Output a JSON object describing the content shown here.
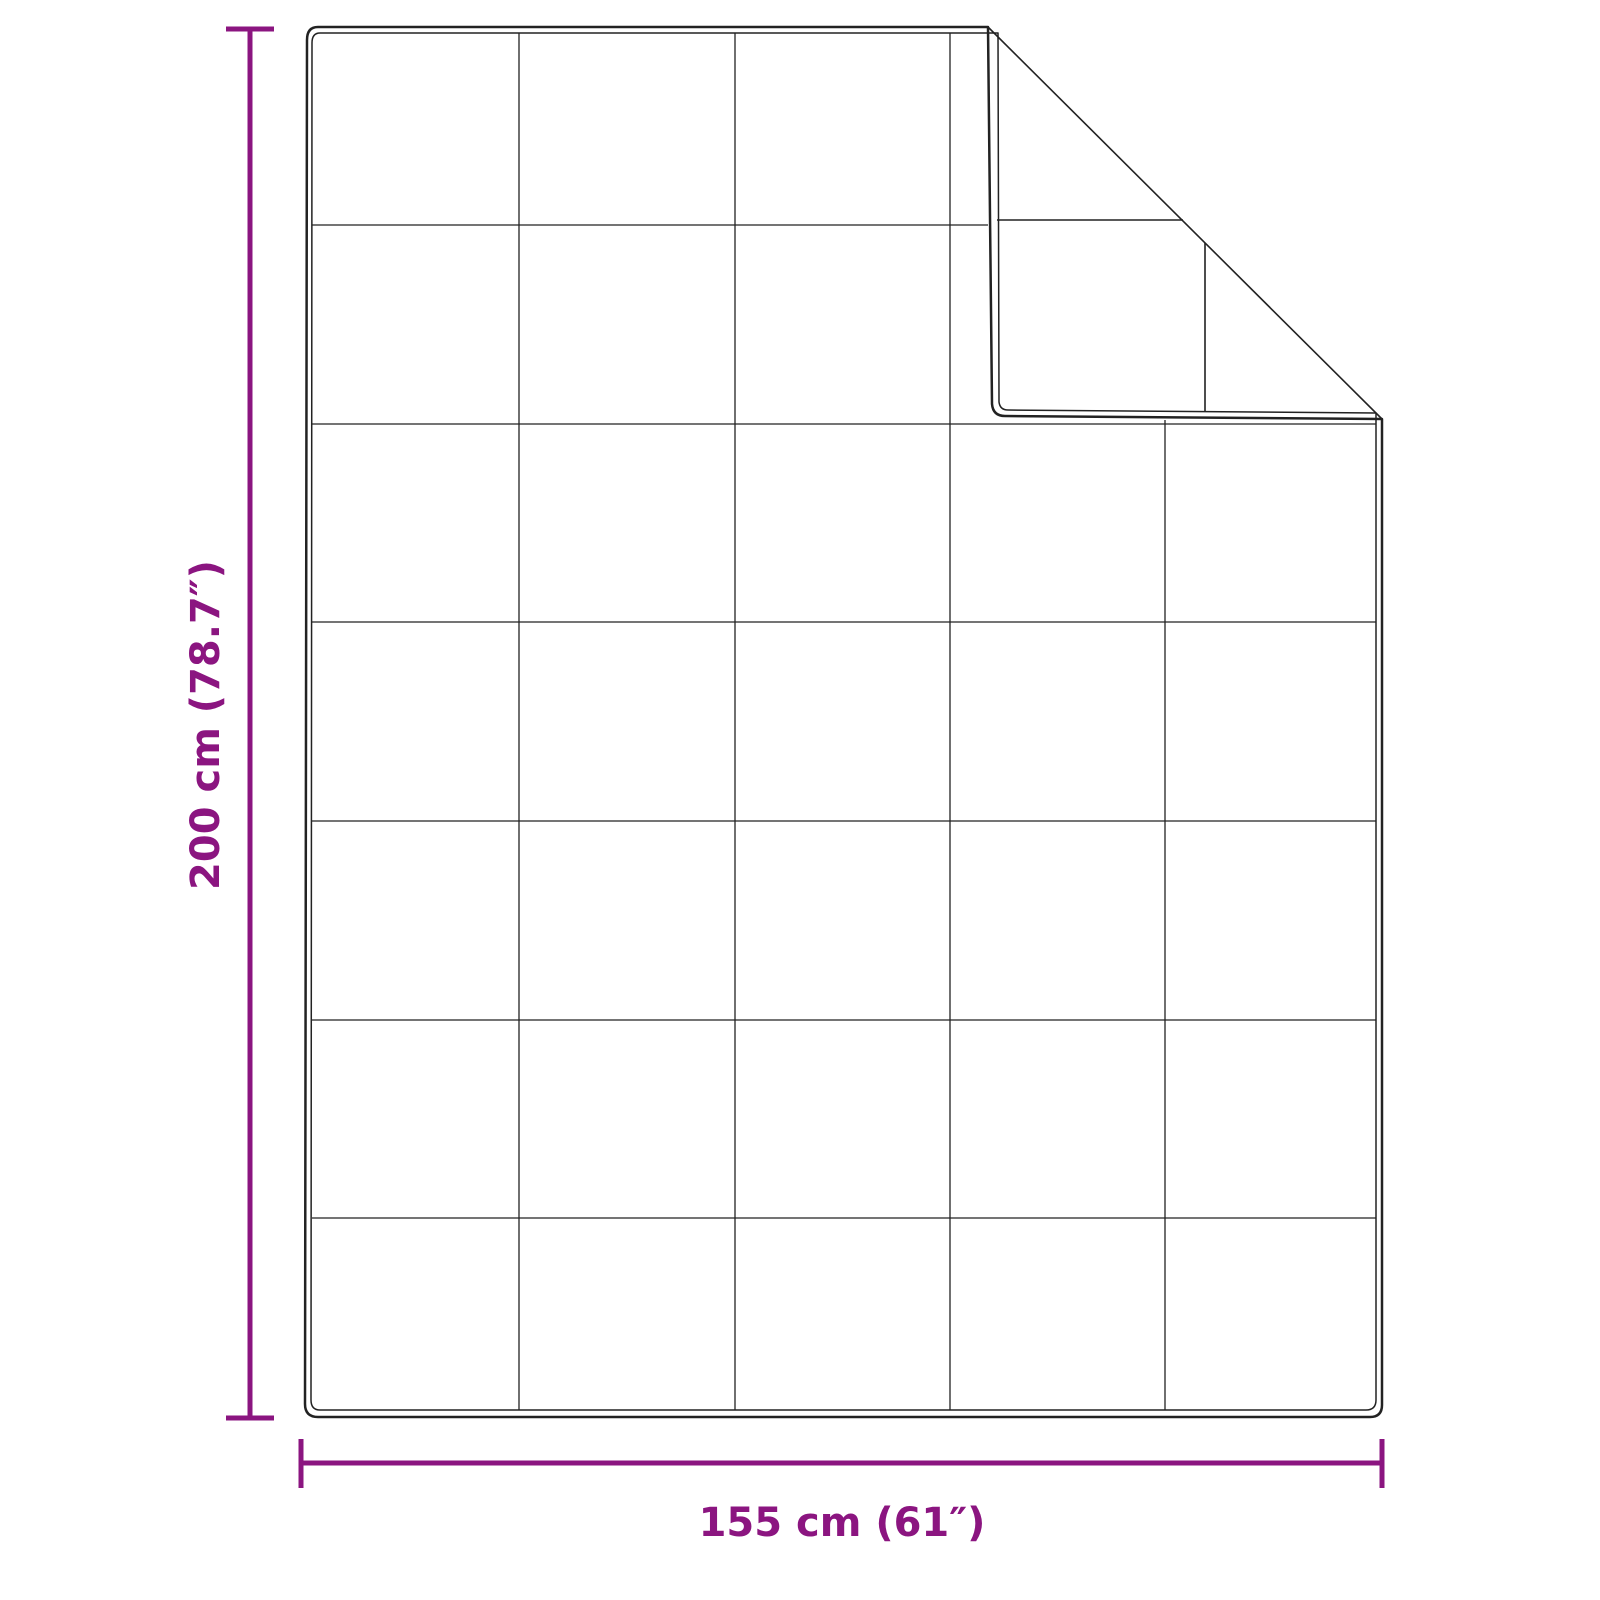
{
  "dimensions": {
    "width_label": "155 cm (61″)",
    "height_label": "200 cm (78.7″)"
  },
  "colors": {
    "dimension": "#8b1580",
    "outline": "#222222",
    "background": "#ffffff"
  }
}
